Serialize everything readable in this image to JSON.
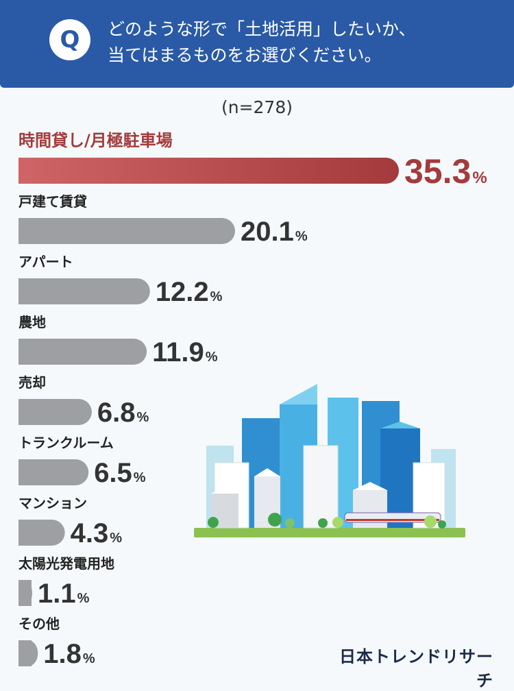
{
  "question": {
    "badge": "Q",
    "line1": "どのような形で「土地活用」したいか、",
    "line2": "当てはまるものをお選びください。"
  },
  "sample_size": "(n=278)",
  "colors": {
    "header_bg": "#2a5aa6",
    "highlight_bar_start": "#cf6466",
    "highlight_bar_end": "#a43a3c",
    "highlight_text": "#a43a3c",
    "bar_gray": "#9e9fa2",
    "value_text": "#333333"
  },
  "chart_data": {
    "type": "bar",
    "orientation": "horizontal",
    "unit": "%",
    "categories": [
      "時間貸し/月極駐車場",
      "戸建て賃貸",
      "アパート",
      "農地",
      "売却",
      "トランクルーム",
      "マンション",
      "太陽光発電用地",
      "その他"
    ],
    "values": [
      35.3,
      20.1,
      12.2,
      11.9,
      6.8,
      6.5,
      4.3,
      1.1,
      1.8
    ],
    "value_labels": [
      "35.3",
      "20.1",
      "12.2",
      "11.9",
      "6.8",
      "6.5",
      "4.3",
      "1.1",
      "1.8"
    ],
    "highlight_index": 0,
    "xlim": [
      0,
      35.3
    ],
    "grid": false
  },
  "logo": "日本トレンドリサーチ",
  "illustration": "city-skyline-illustration"
}
